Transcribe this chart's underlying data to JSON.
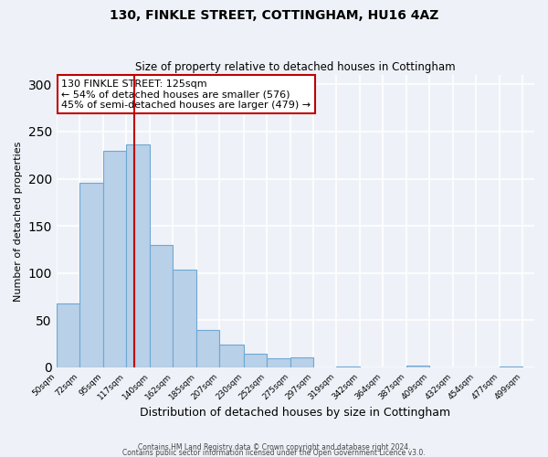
{
  "title": "130, FINKLE STREET, COTTINGHAM, HU16 4AZ",
  "subtitle": "Size of property relative to detached houses in Cottingham",
  "xlabel": "Distribution of detached houses by size in Cottingham",
  "ylabel": "Number of detached properties",
  "bin_edges": [
    50,
    72,
    95,
    117,
    140,
    162,
    185,
    207,
    230,
    252,
    275,
    297,
    319,
    342,
    364,
    387,
    409,
    432,
    454,
    477,
    499
  ],
  "bar_heights": [
    68,
    196,
    230,
    236,
    130,
    104,
    40,
    24,
    15,
    10,
    11,
    0,
    1,
    0,
    0,
    2,
    0,
    0,
    0,
    1
  ],
  "bar_color": "#b8d0e8",
  "bar_edgecolor": "#6fa8d4",
  "tick_labels": [
    "50sqm",
    "72sqm",
    "95sqm",
    "117sqm",
    "140sqm",
    "162sqm",
    "185sqm",
    "207sqm",
    "230sqm",
    "252sqm",
    "275sqm",
    "297sqm",
    "319sqm",
    "342sqm",
    "364sqm",
    "387sqm",
    "409sqm",
    "432sqm",
    "454sqm",
    "477sqm",
    "499sqm"
  ],
  "property_size": 125,
  "vline_color": "#c00000",
  "annotation_title": "130 FINKLE STREET: 125sqm",
  "annotation_line1": "← 54% of detached houses are smaller (576)",
  "annotation_line2": "45% of semi-detached houses are larger (479) →",
  "annotation_box_edgecolor": "#c00000",
  "annotation_box_facecolor": "#ffffff",
  "ylim": [
    0,
    310
  ],
  "xlim_min": 50,
  "xlim_max": 510,
  "footnote1": "Contains HM Land Registry data © Crown copyright and database right 2024.",
  "footnote2": "Contains public sector information licensed under the Open Government Licence v3.0.",
  "background_color": "#eef2f8",
  "grid_color": "#ffffff"
}
